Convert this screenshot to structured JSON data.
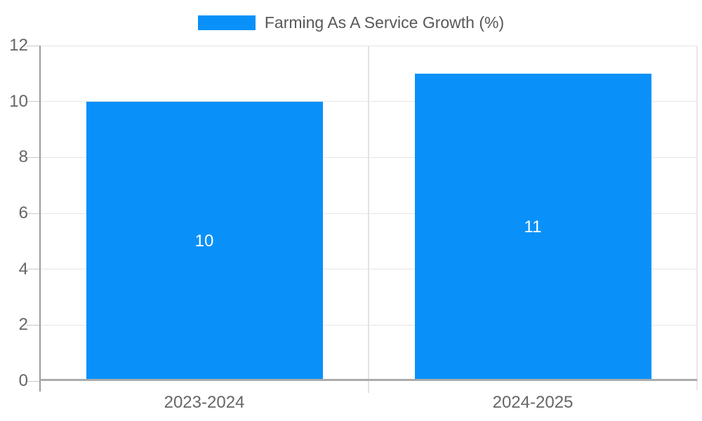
{
  "chart_data": {
    "type": "bar",
    "title": "Farming As A Service Growth (%)",
    "categories": [
      "2023-2024",
      "2024-2025"
    ],
    "values": [
      10,
      11
    ],
    "data_labels": [
      "10",
      "11"
    ],
    "xlabel": "",
    "ylabel": "",
    "ylim": [
      0,
      12
    ],
    "yticks": [
      0,
      2,
      4,
      6,
      8,
      10,
      12
    ],
    "grid": true,
    "legend_position": "top",
    "bar_color": "#0a91f9",
    "data_label_color": "#ffffff"
  },
  "colors": {
    "bar": "#0a91f9",
    "grid": "#e6e6e6",
    "divider": "#e3e3e3",
    "right_border": "#e7e7e7",
    "axis_y": "#9b9b9b",
    "axis_x": "#ababab",
    "tick": "#c9c9c9",
    "tick_label": "#666666",
    "legend_text": "#58585a",
    "data_label": "#ffffff",
    "background": "#ffffff"
  }
}
